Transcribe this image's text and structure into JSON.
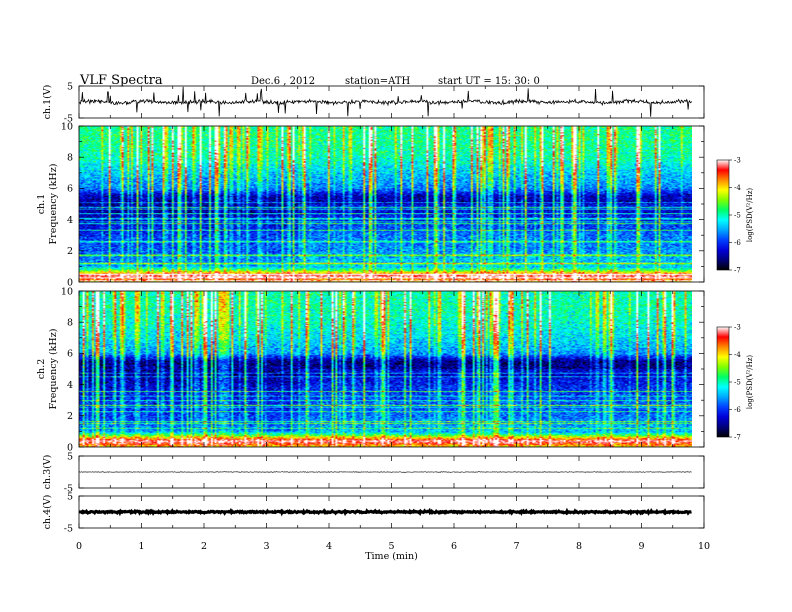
{
  "header": {
    "title": "VLF  Spectra",
    "date": "Dec.6  , 2012",
    "station": "station=ATH",
    "start_ut": "start  UT  =   15: 30: 0"
  },
  "colors": {
    "spectrogram_stops": [
      "#000000",
      "#00007a",
      "#0000d8",
      "#0040ff",
      "#00a8ff",
      "#00ffff",
      "#00ff66",
      "#7fff00",
      "#ffff00",
      "#ff8800",
      "#ff0000",
      "#ffffff"
    ]
  },
  "chart_data": [
    {
      "type": "line",
      "name": "ch1-waveform",
      "ylabel": "ch.1(V)",
      "ylim": [
        -5,
        5
      ],
      "y_ticks": [
        "5",
        "-5"
      ],
      "xlim": [
        0,
        10
      ],
      "x_extent_min": 9.8,
      "baseline_V": 0.0,
      "noise_amplitude_V": 1.2
    },
    {
      "type": "heatmap",
      "name": "ch1-spectrogram",
      "ylabel": "ch.1\nFrequency  (kHz)",
      "y_ticks": [
        "0",
        "2",
        "4",
        "6",
        "8",
        "10"
      ],
      "ylim": [
        0,
        10
      ],
      "xlim": [
        0,
        10
      ],
      "x_extent_min": 9.8,
      "colorbar": {
        "label": "log(PSD(V²/Hz)",
        "range": [
          -7,
          -3
        ],
        "ticks": [
          "-3",
          "-4",
          "-5",
          "-6",
          "-7"
        ]
      },
      "profile_logpsd": [
        [
          0,
          -4.0
        ],
        [
          0.35,
          -3.1
        ],
        [
          0.75,
          -4.8
        ],
        [
          1.0,
          -5.6
        ],
        [
          2.0,
          -5.9
        ],
        [
          3.0,
          -6.0
        ],
        [
          4.5,
          -6.5
        ],
        [
          5.5,
          -6.4
        ],
        [
          6.0,
          -5.7
        ],
        [
          7.0,
          -5.4
        ],
        [
          8.0,
          -5.0
        ],
        [
          9.0,
          -4.9
        ],
        [
          10.0,
          -4.9
        ]
      ]
    },
    {
      "type": "heatmap",
      "name": "ch2-spectrogram",
      "ylabel": "ch.2\nFrequency  (kHz)",
      "y_ticks": [
        "0",
        "2",
        "4",
        "6",
        "8",
        "10"
      ],
      "ylim": [
        0,
        10
      ],
      "xlim": [
        0,
        10
      ],
      "x_extent_min": 9.8,
      "colorbar": {
        "label": "log(PSD(V²/Hz)",
        "range": [
          -7,
          -3
        ],
        "ticks": [
          "-3",
          "-4",
          "-5",
          "-6",
          "-7"
        ]
      },
      "profile_logpsd": [
        [
          0,
          -4.0
        ],
        [
          0.35,
          -3.1
        ],
        [
          0.75,
          -4.8
        ],
        [
          1.0,
          -5.7
        ],
        [
          2.0,
          -6.0
        ],
        [
          3.0,
          -6.1
        ],
        [
          4.5,
          -6.5
        ],
        [
          5.5,
          -6.6
        ],
        [
          6.0,
          -5.6
        ],
        [
          7.0,
          -5.3
        ],
        [
          8.0,
          -5.1
        ],
        [
          9.0,
          -5.0
        ],
        [
          10.0,
          -5.0
        ]
      ]
    },
    {
      "type": "line",
      "name": "ch3-waveform",
      "ylabel": "ch.3(V)",
      "ylim": [
        -5,
        5
      ],
      "y_ticks": [
        "5",
        "-5"
      ],
      "xlim": [
        0,
        10
      ],
      "x_extent_min": 9.8,
      "baseline_V": 0.0,
      "noise_amplitude_V": 0.15
    },
    {
      "type": "line",
      "name": "ch4-waveform",
      "ylabel": "ch.4(V)",
      "ylim": [
        -5,
        5
      ],
      "y_ticks": [
        "5",
        "-5"
      ],
      "xlim": [
        0,
        10
      ],
      "x_extent_min": 9.8,
      "baseline_V": 0.0,
      "noise_amplitude_V": 0.4
    }
  ],
  "x_axis": {
    "label": "Time  (min)",
    "ticks": [
      "0",
      "1",
      "2",
      "3",
      "4",
      "5",
      "6",
      "7",
      "8",
      "9",
      "10"
    ]
  }
}
